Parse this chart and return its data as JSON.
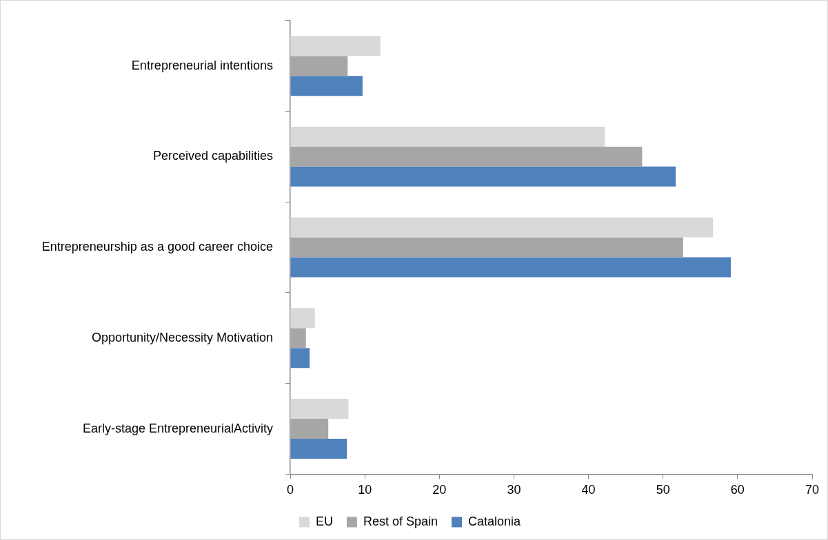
{
  "chart_data": {
    "type": "bar",
    "orientation": "horizontal",
    "categories": [
      "Entrepreneurial intentions",
      "Perceived capabilities",
      "Entrepreneurship as a good career choice",
      "Opportunity/Necessity Motivation",
      "Early-stage EntrepreneurialActivity"
    ],
    "series": [
      {
        "name": "EU",
        "color": "#d9d9d9",
        "values": [
          12.1,
          42.2,
          56.7,
          3.3,
          7.8
        ]
      },
      {
        "name": "Rest of Spain",
        "color": "#a6a6a6",
        "values": [
          7.7,
          47.2,
          52.7,
          2.1,
          5.1
        ]
      },
      {
        "name": "Catalonia",
        "color": "#4f81bd",
        "values": [
          9.7,
          51.7,
          59.1,
          2.6,
          7.6
        ]
      }
    ],
    "xlim": [
      0,
      70
    ],
    "xticks": [
      0,
      10,
      20,
      30,
      40,
      50,
      60,
      70
    ],
    "grid": false,
    "legend": "bottom"
  }
}
